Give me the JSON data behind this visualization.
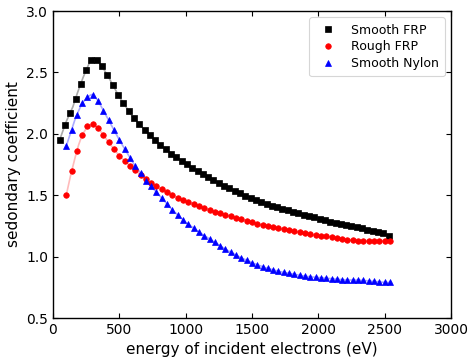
{
  "title": "",
  "xlabel": "energy of incident electrons (eV)",
  "ylabel": "sedondary coefficient",
  "xlim": [
    0,
    3000
  ],
  "ylim": [
    0.5,
    3.0
  ],
  "xticks": [
    0,
    500,
    1000,
    1500,
    2000,
    2500,
    3000
  ],
  "yticks": [
    0.5,
    1.0,
    1.5,
    2.0,
    2.5,
    3.0
  ],
  "series": [
    {
      "label": "Smooth FRP",
      "line_color": "#aaaaaa",
      "marker_color": "#000000",
      "marker": "s",
      "x_data": [
        50,
        100,
        150,
        180,
        200,
        220,
        250,
        280,
        300,
        330,
        370,
        420,
        500,
        600,
        700,
        800,
        900,
        1000,
        1100,
        1200,
        1300,
        1400,
        1500,
        1600,
        1700,
        1800,
        1900,
        2000,
        2100,
        2200,
        2300,
        2400,
        2500,
        2550
      ],
      "y_data": [
        1.95,
        2.1,
        2.22,
        2.32,
        2.38,
        2.44,
        2.52,
        2.59,
        2.62,
        2.6,
        2.55,
        2.46,
        2.3,
        2.14,
        2.02,
        1.92,
        1.83,
        1.76,
        1.69,
        1.63,
        1.57,
        1.52,
        1.47,
        1.43,
        1.4,
        1.37,
        1.34,
        1.31,
        1.28,
        1.26,
        1.24,
        1.21,
        1.19,
        1.15
      ]
    },
    {
      "label": "Rough FRP",
      "line_color": "#ffbbbb",
      "marker_color": "#ff0000",
      "marker": "o",
      "x_data": [
        100,
        130,
        160,
        190,
        220,
        260,
        300,
        330,
        360,
        420,
        500,
        600,
        700,
        800,
        900,
        1000,
        1100,
        1200,
        1300,
        1400,
        1500,
        1600,
        1700,
        1800,
        1900,
        2000,
        2100,
        2200,
        2300,
        2400,
        2500,
        2550
      ],
      "y_data": [
        1.5,
        1.65,
        1.78,
        1.9,
        1.99,
        2.06,
        2.08,
        2.06,
        2.02,
        1.93,
        1.82,
        1.72,
        1.63,
        1.56,
        1.5,
        1.45,
        1.41,
        1.37,
        1.34,
        1.31,
        1.28,
        1.25,
        1.23,
        1.21,
        1.19,
        1.17,
        1.16,
        1.14,
        1.13,
        1.13,
        1.13,
        1.13
      ]
    },
    {
      "label": "Smooth Nylon",
      "line_color": "#aaaaff",
      "marker_color": "#0000ff",
      "marker": "^",
      "x_data": [
        100,
        130,
        160,
        190,
        220,
        260,
        290,
        310,
        340,
        400,
        500,
        600,
        700,
        800,
        900,
        1000,
        1100,
        1200,
        1300,
        1400,
        1500,
        1600,
        1700,
        1800,
        1900,
        2000,
        2100,
        2200,
        2300,
        2400,
        2500,
        2550
      ],
      "y_data": [
        1.9,
        2.0,
        2.1,
        2.18,
        2.25,
        2.3,
        2.32,
        2.31,
        2.27,
        2.15,
        1.95,
        1.77,
        1.62,
        1.5,
        1.38,
        1.28,
        1.2,
        1.13,
        1.06,
        1.0,
        0.95,
        0.91,
        0.88,
        0.86,
        0.84,
        0.83,
        0.82,
        0.81,
        0.81,
        0.8,
        0.79,
        0.79
      ]
    }
  ],
  "legend_loc": "upper right",
  "markersize": 4,
  "linewidth": 1.2,
  "figsize": [
    4.74,
    3.63
  ],
  "dpi": 100
}
